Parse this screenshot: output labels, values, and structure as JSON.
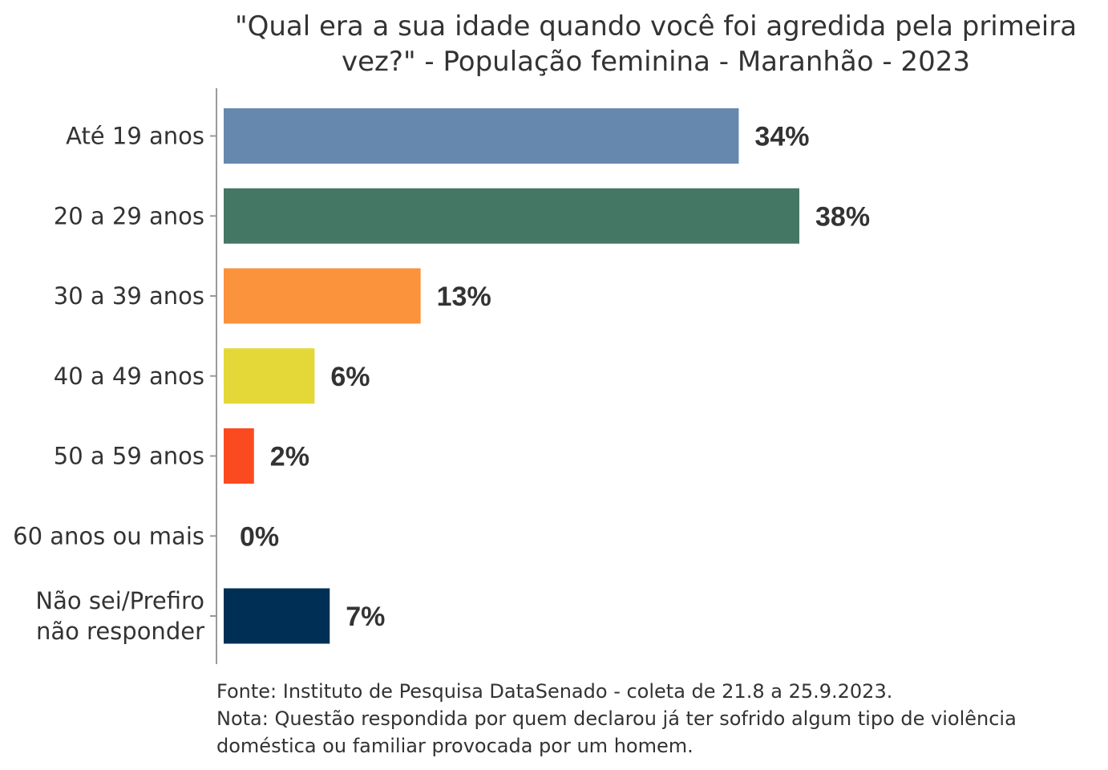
{
  "chart_data": {
    "type": "bar",
    "orientation": "horizontal",
    "title_lines": [
      "\"Qual era a sua idade quando você foi agredida pela primeira",
      "vez?\" - População feminina - Maranhão - 2023"
    ],
    "categories": [
      [
        "Até 19 anos"
      ],
      [
        "20 a 29 anos"
      ],
      [
        "30 a 39 anos"
      ],
      [
        "40 a 49 anos"
      ],
      [
        "50 a 59 anos"
      ],
      [
        "60 anos ou mais"
      ],
      [
        "Não sei/Prefiro",
        "não responder"
      ]
    ],
    "values": [
      34,
      38,
      13,
      6,
      2,
      0,
      7
    ],
    "value_labels": [
      "34%",
      "38%",
      "13%",
      "6%",
      "2%",
      "0%",
      "7%"
    ],
    "colors": [
      "#6688ae",
      "#447764",
      "#fb923c",
      "#e3d837",
      "#fc4a20",
      "#cccccc",
      "#002f55"
    ],
    "xlim": [
      0,
      38
    ],
    "grid": false,
    "legend": "none",
    "footnote_lines": [
      "Fonte: Instituto de Pesquisa DataSenado - coleta de 21.8 a 25.9.2023.",
      "Nota: Questão respondida por quem declarou já ter sofrido algum tipo de violência",
      "doméstica ou familiar provocada por um homem."
    ]
  }
}
